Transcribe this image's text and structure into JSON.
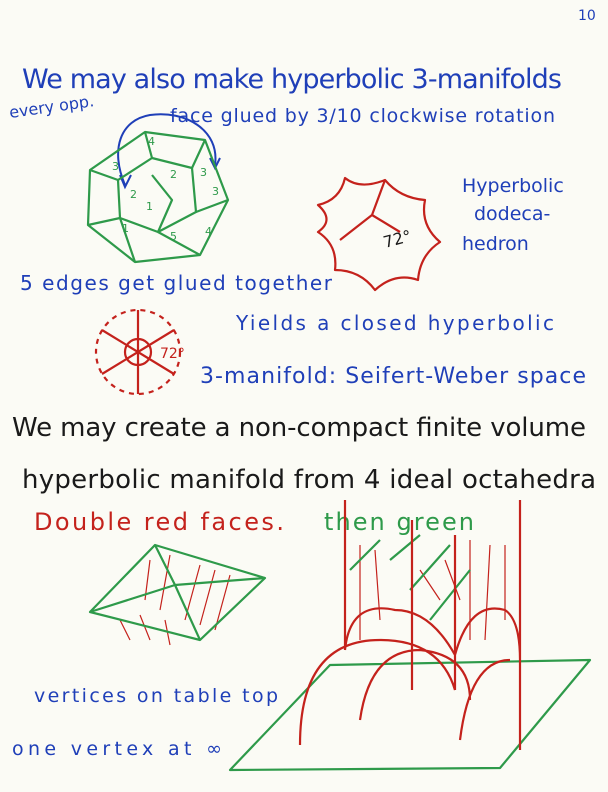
{
  "page_number": "10",
  "lines": {
    "intro": "We may also make hyperbolic 3-manifolds",
    "every_opp": "every opp.",
    "face_glued": "face glued by 3/10 clockwise rotation",
    "dodeca": [
      "Hyperbolic",
      "dodeca-",
      "hedron"
    ],
    "angle": "72°",
    "angle_small": "72°",
    "edges": "5 edges get glued together",
    "yields": "Yields a closed hyperbolic",
    "seifert": "3-manifold: Seifert-Weber space",
    "create": "We may create a non-compact finite volume",
    "manifold": "hyperbolic manifold from 4 ideal octahedra",
    "double_red": "Double red faces.",
    "then_green": "then green",
    "vertices": "vertices on table top",
    "one_vertex": "one vertex at ∞"
  },
  "dodecahedron_labels": [
    "4",
    "3",
    "3",
    "2",
    "1",
    "5",
    "4",
    "3",
    "1",
    "2"
  ]
}
